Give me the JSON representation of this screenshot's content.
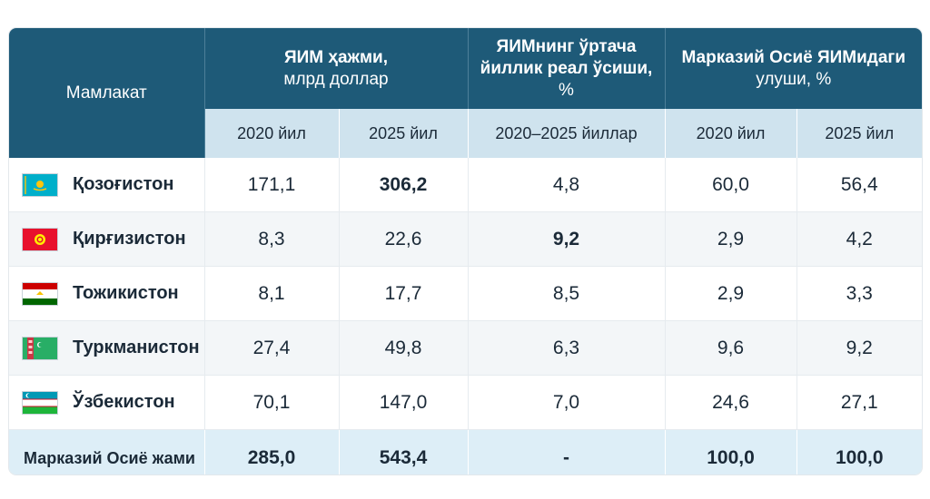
{
  "header": {
    "country": "Мамлакат",
    "gdp_volume": [
      "ЯИМ ҳажми,",
      "млрд доллар"
    ],
    "gdp_growth": [
      "ЯИМнинг ўртача",
      "йиллик реал ўсиши,",
      "%"
    ],
    "share": [
      "Марказий Осиё ЯИМидаги",
      "улуши, %"
    ],
    "sub": [
      "2020 йил",
      "2025 йил",
      "2020–2025 йиллар",
      "2020 йил",
      "2025 йил"
    ]
  },
  "rows": [
    {
      "country": "Қозоғистон",
      "flag": "kazakhstan-flag-icon",
      "vals": [
        "171,1",
        "306,2",
        "4,8",
        "60,0",
        "56,4"
      ]
    },
    {
      "country": "Қирғизистон",
      "flag": "kyrgyzstan-flag-icon",
      "vals": [
        "8,3",
        "22,6",
        "9,2",
        "2,9",
        "4,2"
      ]
    },
    {
      "country": "Тожикистон",
      "flag": "tajikistan-flag-icon",
      "vals": [
        "8,1",
        "17,7",
        "8,5",
        "2,9",
        "3,3"
      ]
    },
    {
      "country": "Туркманистон",
      "flag": "turkmenistan-flag-icon",
      "vals": [
        "27,4",
        "49,8",
        "6,3",
        "9,6",
        "9,2"
      ]
    },
    {
      "country": "Ўзбекистон",
      "flag": "uzbekistan-flag-icon",
      "vals": [
        "70,1",
        "147,0",
        "7,0",
        "24,6",
        "27,1"
      ]
    }
  ],
  "total": {
    "label": "Марказий Осиё жами",
    "vals": [
      "285,0",
      "543,4",
      "-",
      "100,0",
      "100,0"
    ]
  },
  "colors": {
    "header": "#1e5a78",
    "subheader": "#cfe3ee",
    "total": "#ddeef7"
  }
}
